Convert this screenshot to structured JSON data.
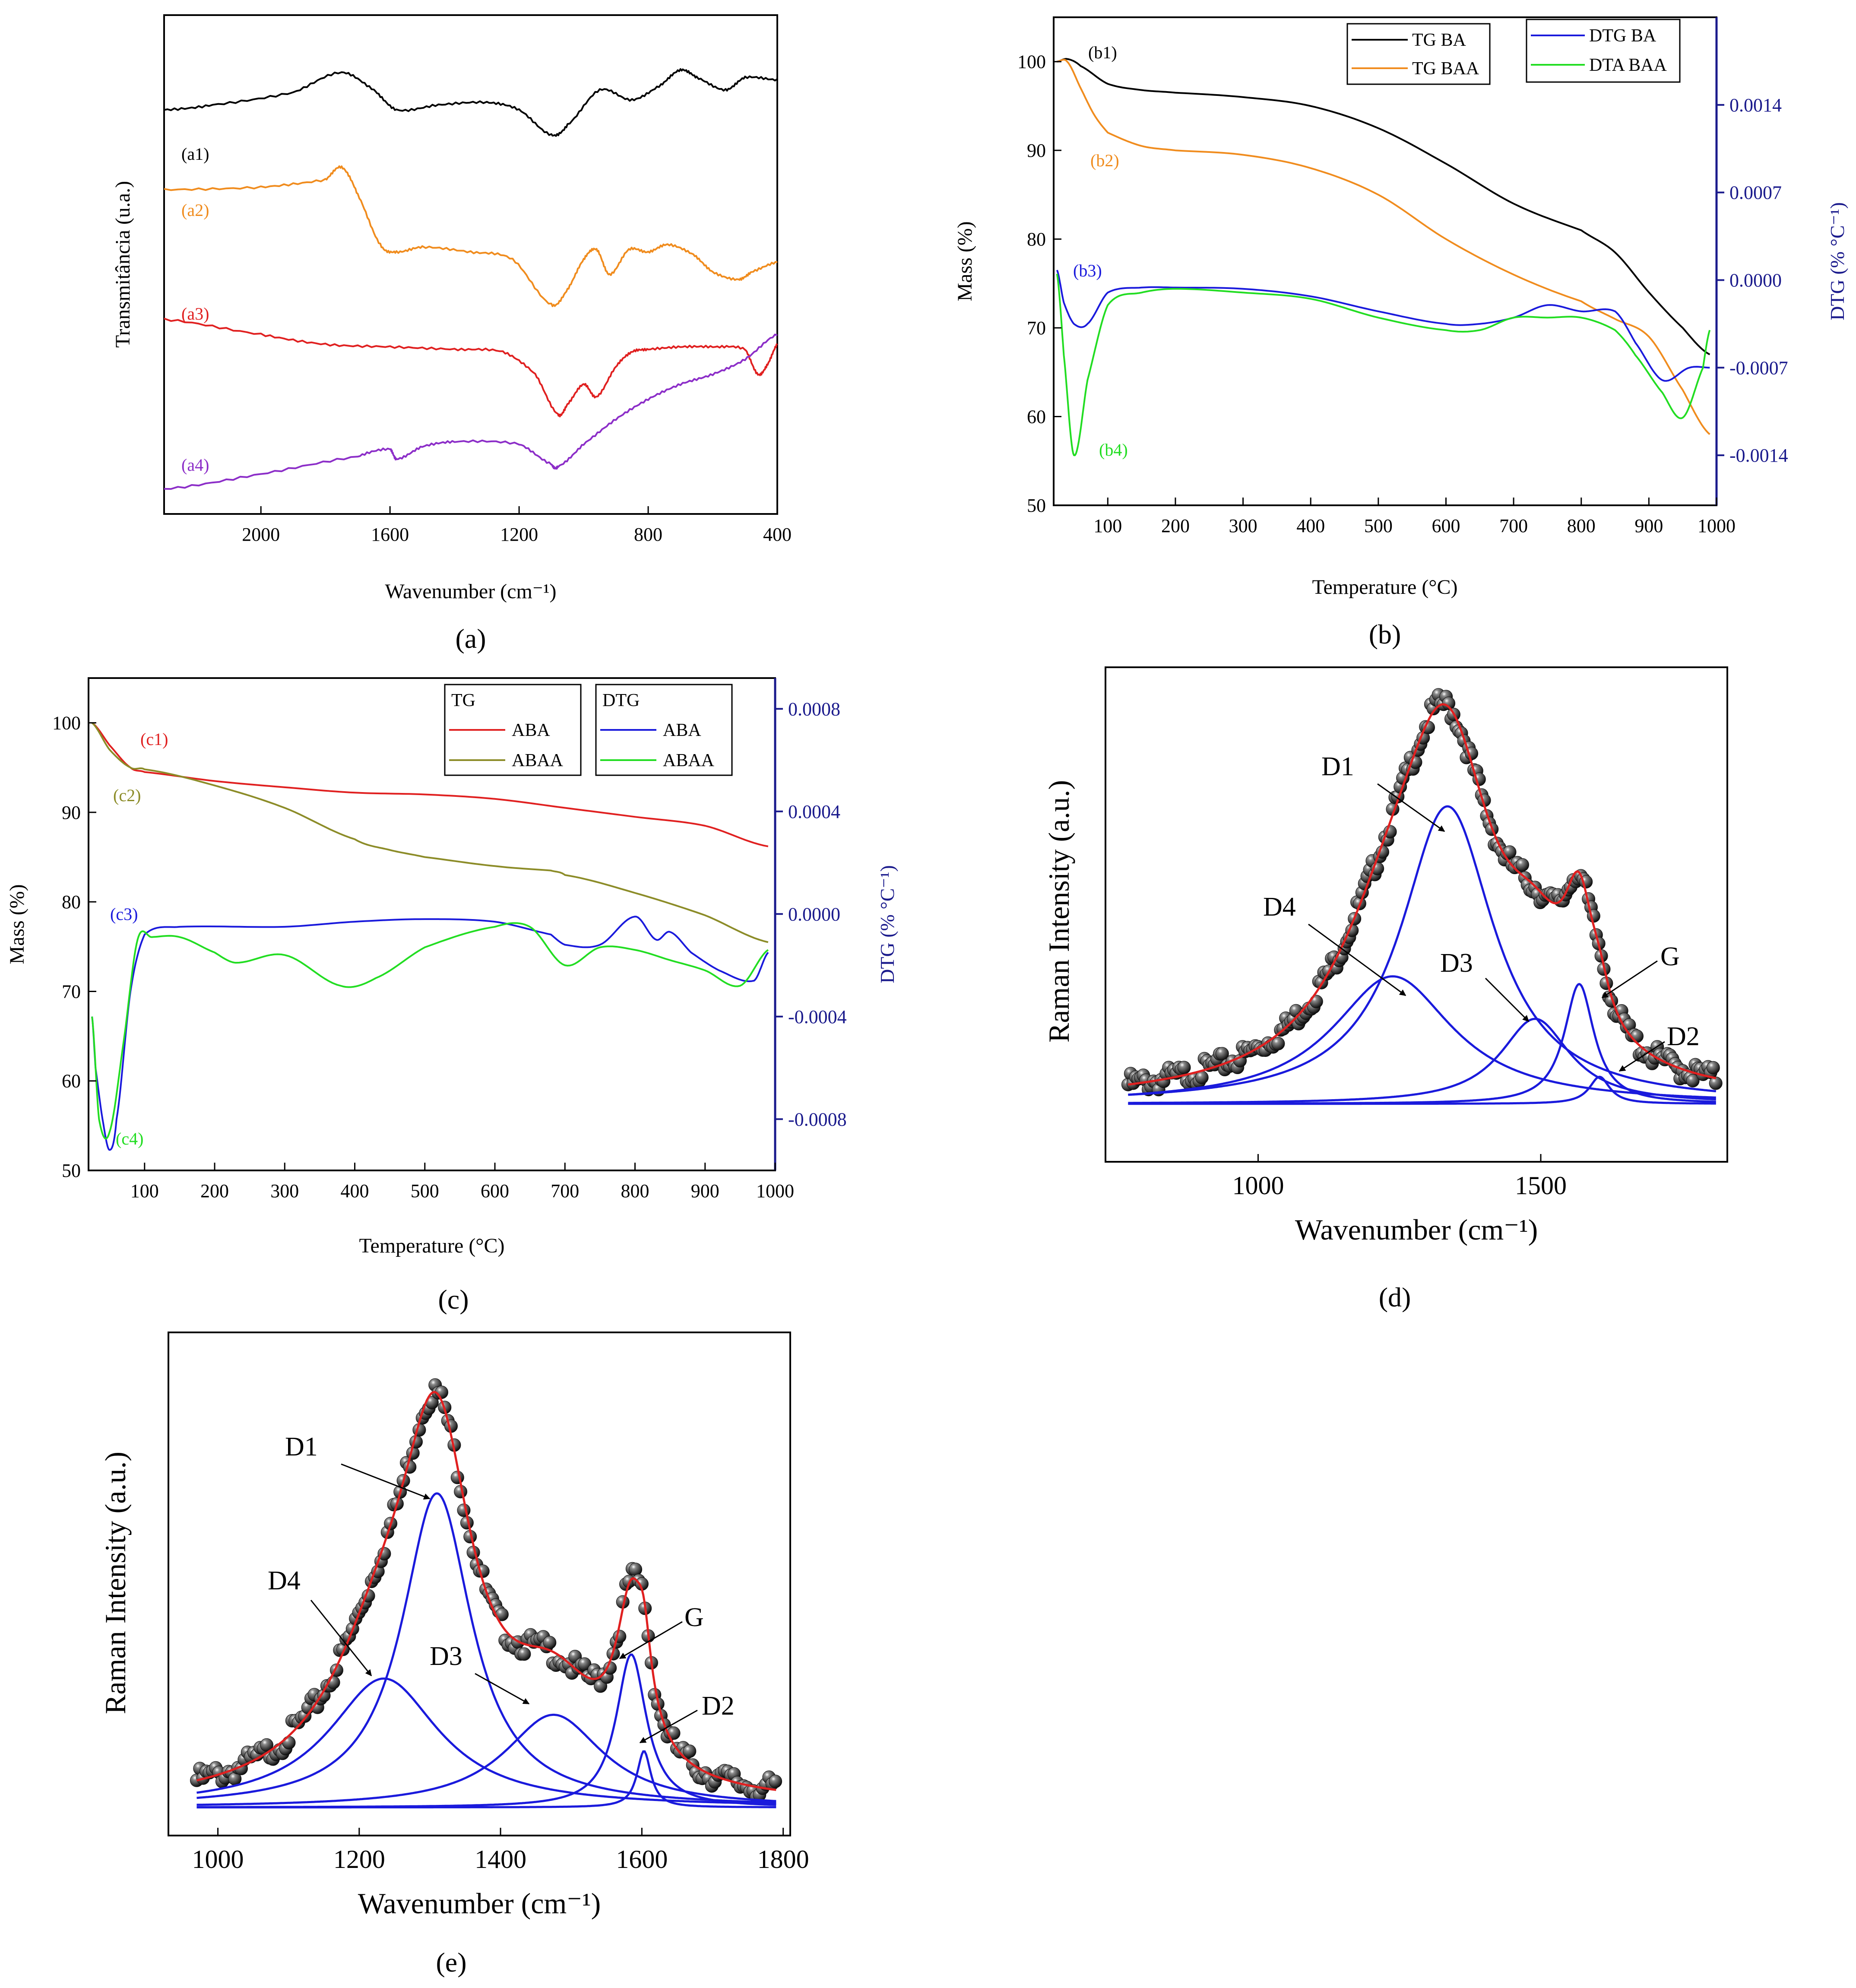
{
  "chart_data": [
    {
      "panel": "a",
      "type": "line",
      "caption": "(a)",
      "xlabel": "Wavenumber (cm⁻¹)",
      "ylabel": "Transmitância (u.a.)",
      "xlim": [
        2300,
        400
      ],
      "ylim": [
        0,
        10
      ],
      "xticks": [
        2000,
        1600,
        1200,
        800,
        400
      ],
      "yticks": [],
      "series": [
        {
          "name": "(a1)",
          "color": "#000000",
          "x": [
            2300,
            2150,
            1900,
            1750,
            1650,
            1580,
            1450,
            1300,
            1200,
            1100,
            1050,
            950,
            850,
            760,
            700,
            650,
            560,
            500,
            400
          ],
          "y": [
            8.1,
            8.2,
            8.45,
            8.85,
            8.5,
            8.1,
            8.2,
            8.25,
            8.1,
            7.6,
            7.8,
            8.5,
            8.3,
            8.6,
            8.9,
            8.75,
            8.5,
            8.75,
            8.7
          ]
        },
        {
          "name": "(a2)",
          "color": "#f08c1e",
          "x": [
            2300,
            2000,
            1800,
            1750,
            1700,
            1630,
            1580,
            1500,
            1350,
            1220,
            1100,
            1050,
            1000,
            960,
            920,
            860,
            800,
            740,
            660,
            600,
            520,
            480,
            400
          ],
          "y": [
            6.5,
            6.55,
            6.7,
            6.95,
            6.4,
            5.4,
            5.25,
            5.35,
            5.25,
            5.1,
            4.2,
            4.5,
            5.1,
            5.3,
            4.8,
            5.3,
            5.25,
            5.4,
            5.2,
            4.85,
            4.7,
            4.85,
            5.05
          ]
        },
        {
          "name": "(a3)",
          "color": "#e02020",
          "x": [
            2300,
            2000,
            1800,
            1600,
            1400,
            1250,
            1150,
            1080,
            1050,
            1000,
            960,
            900,
            850,
            800,
            700,
            600,
            500,
            460,
            430,
            400
          ],
          "y": [
            3.9,
            3.6,
            3.4,
            3.35,
            3.3,
            3.25,
            2.8,
            2.0,
            2.2,
            2.6,
            2.35,
            2.95,
            3.25,
            3.3,
            3.35,
            3.35,
            3.3,
            2.8,
            3.0,
            3.4
          ]
        },
        {
          "name": "(a4)",
          "color": "#8c2ec8",
          "x": [
            2300,
            2000,
            1700,
            1600,
            1580,
            1500,
            1400,
            1200,
            1100,
            1080,
            1000,
            900,
            800,
            700,
            600,
            500,
            400
          ],
          "y": [
            0.5,
            0.8,
            1.15,
            1.3,
            1.1,
            1.35,
            1.45,
            1.4,
            1.0,
            0.95,
            1.4,
            1.9,
            2.3,
            2.6,
            2.8,
            3.1,
            3.6
          ]
        }
      ],
      "annotations": [
        "(a1)",
        "(a2)",
        "(a3)",
        "(a4)"
      ]
    },
    {
      "panel": "b",
      "type": "line",
      "caption": "(b)",
      "xlabel": "Temperature (°C)",
      "ylabel": "Mass (%)",
      "y2label": "DTG (% °C⁻¹)",
      "xlim": [
        20,
        1000
      ],
      "ylim": [
        50,
        105
      ],
      "y2lim": [
        -0.0018,
        0.0021
      ],
      "xticks": [
        100,
        200,
        300,
        400,
        500,
        600,
        700,
        800,
        900,
        1000
      ],
      "yticks": [
        50,
        60,
        70,
        80,
        90,
        100
      ],
      "y2ticks": [
        0.0014,
        0.0007,
        0.0,
        -0.0007,
        -0.0014
      ],
      "y2ticklabels": [
        "0.0014",
        "0.0007",
        "0.0000",
        "-0.0007",
        "-0.0014"
      ],
      "series": [
        {
          "name": "TG BA",
          "color": "#000000",
          "axis": "left",
          "x": [
            25,
            40,
            60,
            100,
            150,
            200,
            300,
            400,
            500,
            600,
            700,
            800,
            850,
            900,
            950,
            990
          ],
          "y": [
            100,
            100.3,
            99.5,
            97.5,
            96.8,
            96.5,
            96,
            95,
            92.5,
            88.5,
            84,
            81,
            78.5,
            74,
            70,
            67
          ]
        },
        {
          "name": "TG BAA",
          "color": "#f08c1e",
          "axis": "left",
          "x": [
            25,
            40,
            60,
            80,
            100,
            150,
            200,
            300,
            400,
            500,
            600,
            700,
            800,
            850,
            900,
            950,
            990
          ],
          "y": [
            100,
            100,
            97,
            94,
            92,
            90.5,
            90,
            89.5,
            88,
            85,
            80,
            76,
            73,
            71,
            69,
            63,
            58
          ]
        },
        {
          "name": "DTG BA",
          "color": "#1a1adc",
          "axis": "right",
          "x": [
            25,
            35,
            50,
            70,
            100,
            150,
            200,
            300,
            400,
            500,
            600,
            650,
            700,
            750,
            800,
            850,
            880,
            920,
            960,
            990
          ],
          "y": [
            8e-05,
            -0.00018,
            -0.00035,
            -0.00035,
            -0.0001,
            -6e-05,
            -6e-05,
            -7e-05,
            -0.00013,
            -0.00025,
            -0.00035,
            -0.00035,
            -0.0003,
            -0.0002,
            -0.00025,
            -0.00025,
            -0.0005,
            -0.0008,
            -0.0007,
            -0.0007
          ]
        },
        {
          "name": "DTA BAA",
          "color": "#22dd22",
          "axis": "right",
          "x": [
            25,
            35,
            50,
            70,
            100,
            150,
            200,
            300,
            400,
            500,
            600,
            650,
            700,
            750,
            800,
            850,
            880,
            920,
            950,
            980,
            990
          ],
          "y": [
            5e-05,
            -0.0006,
            -0.0014,
            -0.0008,
            -0.0002,
            -0.0001,
            -7e-05,
            -0.0001,
            -0.00015,
            -0.0003,
            -0.0004,
            -0.0004,
            -0.0003,
            -0.0003,
            -0.0003,
            -0.0004,
            -0.0006,
            -0.0009,
            -0.0011,
            -0.0007,
            -0.0004
          ]
        }
      ],
      "annotations": [
        "(b1)",
        "(b2)",
        "(b3)",
        "(b4)"
      ]
    },
    {
      "panel": "c",
      "type": "line",
      "caption": "(c)",
      "xlabel": "Temperature (°C)",
      "ylabel": "Mass (%)",
      "y2label": "DTG (% °C⁻¹)",
      "xlim": [
        20,
        1000
      ],
      "ylim": [
        50,
        105
      ],
      "y2lim": [
        -0.001,
        0.00092
      ],
      "xticks": [
        100,
        200,
        300,
        400,
        500,
        600,
        700,
        800,
        900,
        1000
      ],
      "yticks": [
        50,
        60,
        70,
        80,
        90,
        100
      ],
      "y2ticks": [
        0.0008,
        0.0004,
        0.0,
        -0.0004,
        -0.0008
      ],
      "y2ticklabels": [
        "0.0008",
        "0.0004",
        "0.0000",
        "-0.0004",
        "-0.0008"
      ],
      "legend_titles": [
        "TG",
        "DTG"
      ],
      "series": [
        {
          "name": "ABA",
          "group": "TG",
          "color": "#e02020",
          "axis": "left",
          "x": [
            25,
            50,
            80,
            100,
            200,
            300,
            400,
            500,
            600,
            700,
            800,
            900,
            990
          ],
          "y": [
            100,
            97.5,
            95,
            94.5,
            93.5,
            92.8,
            92.2,
            92,
            91.5,
            90.5,
            89.5,
            88.5,
            86.2
          ]
        },
        {
          "name": "ABAA",
          "group": "TG",
          "color": "#8c8c28",
          "axis": "left",
          "x": [
            25,
            50,
            80,
            100,
            200,
            300,
            400,
            450,
            500,
            600,
            680,
            700,
            800,
            900,
            990
          ],
          "y": [
            100,
            97,
            95,
            94.8,
            93,
            90.5,
            87,
            85.8,
            85,
            84,
            83.5,
            83,
            81,
            78.5,
            75.5
          ]
        },
        {
          "name": "ABA",
          "group": "DTG",
          "color": "#1a1adc",
          "axis": "right",
          "x": [
            25,
            30,
            40,
            50,
            60,
            80,
            100,
            150,
            300,
            400,
            500,
            600,
            680,
            700,
            750,
            800,
            830,
            850,
            880,
            920,
            970,
            990
          ],
          "y": [
            -0.0004,
            -0.0006,
            -0.0008,
            -0.00092,
            -0.0008,
            -0.0003,
            -8e-05,
            -5e-05,
            -5e-05,
            -3e-05,
            -2e-05,
            -3e-05,
            -8e-05,
            -0.00012,
            -0.00012,
            -1e-05,
            -0.0001,
            -7e-05,
            -0.00015,
            -0.00022,
            -0.00026,
            -0.00015
          ]
        },
        {
          "name": "ABAA",
          "group": "DTG",
          "color": "#22dd22",
          "axis": "right",
          "x": [
            25,
            35,
            50,
            70,
            90,
            110,
            150,
            200,
            230,
            300,
            380,
            430,
            500,
            600,
            650,
            700,
            750,
            800,
            850,
            900,
            950,
            990
          ],
          "y": [
            -0.0004,
            -0.0008,
            -0.00085,
            -0.0005,
            -0.0001,
            -9e-05,
            -9e-05,
            -0.00015,
            -0.00019,
            -0.00016,
            -0.00028,
            -0.00025,
            -0.00013,
            -5e-05,
            -5e-05,
            -0.0002,
            -0.00013,
            -0.00014,
            -0.00018,
            -0.00022,
            -0.00028,
            -0.00014
          ]
        }
      ],
      "annotations": [
        "(c1)",
        "(c2)",
        "(c3)",
        "(c4)"
      ]
    },
    {
      "panel": "d",
      "type": "line",
      "caption": "(d)",
      "xlabel": "Wavenumber (cm⁻¹)",
      "ylabel": "Raman Intensity (a.u.)",
      "xlim": [
        730,
        1830
      ],
      "ylim": [
        -0.1,
        1.18
      ],
      "xticks": [
        1000,
        1500
      ],
      "baseline": 0.05,
      "envelope_color": "#e02020",
      "peak_color": "#1a1adc",
      "point_color": "#262626",
      "peaks": [
        {
          "name": "D1",
          "center": 1335,
          "amplitude": 0.77,
          "width": 100
        },
        {
          "name": "D4",
          "center": 1238,
          "amplitude": 0.33,
          "width": 130
        },
        {
          "name": "D3",
          "center": 1490,
          "amplitude": 0.22,
          "width": 75
        },
        {
          "name": "G",
          "center": 1568,
          "amplitude": 0.31,
          "width": 32
        },
        {
          "name": "D2",
          "center": 1604,
          "amplitude": 0.07,
          "width": 22
        }
      ],
      "annotations": [
        "D1",
        "D4",
        "D3",
        "G",
        "D2"
      ]
    },
    {
      "panel": "e",
      "type": "line",
      "caption": "(e)",
      "xlabel": "Wavenumber (cm⁻¹)",
      "ylabel": "Raman Intensity (a.u.)",
      "xlim": [
        930,
        1810
      ],
      "ylim": [
        -0.05,
        1.2
      ],
      "xticks": [
        1000,
        1200,
        1400,
        1600,
        1800
      ],
      "baseline": 0.02,
      "envelope_color": "#e02020",
      "peak_color": "#1a1adc",
      "point_color": "#262626",
      "peaks": [
        {
          "name": "D1",
          "center": 1310,
          "amplitude": 0.78,
          "width": 60
        },
        {
          "name": "D4",
          "center": 1235,
          "amplitude": 0.32,
          "width": 95
        },
        {
          "name": "D3",
          "center": 1475,
          "amplitude": 0.23,
          "width": 85
        },
        {
          "name": "G",
          "center": 1585,
          "amplitude": 0.38,
          "width": 26
        },
        {
          "name": "D2",
          "center": 1603,
          "amplitude": 0.14,
          "width": 12
        }
      ],
      "annotations": [
        "D1",
        "D4",
        "D3",
        "G",
        "D2"
      ]
    }
  ]
}
